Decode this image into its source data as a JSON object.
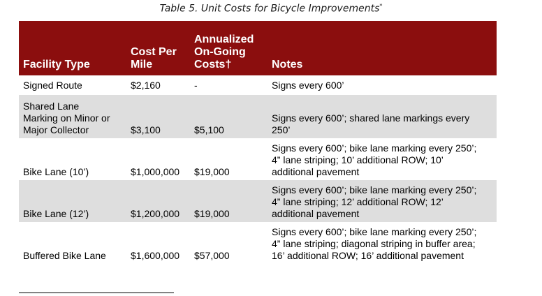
{
  "caption": {
    "title": "Table 5. Unit Costs for Bicycle Improvements",
    "marker": "*"
  },
  "columns": {
    "facility": "Facility Type",
    "cost_l1": "Cost Per",
    "cost_l2": "Mile",
    "annual_l1": "Annualized",
    "annual_l2": "On-Going",
    "annual_l3": "Costs†",
    "notes": "Notes"
  },
  "rows": [
    {
      "facility": [
        "Signed Route"
      ],
      "cost": "$2,160",
      "annual": "-",
      "notes": [
        "Signs every 600’"
      ]
    },
    {
      "facility": [
        "Shared Lane",
        "Marking on Minor or",
        "Major Collector"
      ],
      "cost": "$3,100",
      "annual": "$5,100",
      "notes": [
        "Signs every 600’; shared lane markings every",
        "250’"
      ]
    },
    {
      "facility": [
        "Bike Lane (10’)"
      ],
      "cost": "$1,000,000",
      "annual": "$19,000",
      "notes": [
        "Signs every 600’; bike lane marking every 250’;",
        "4” lane striping; 10’ additional ROW; 10’",
        "additional pavement"
      ]
    },
    {
      "facility": [
        "Bike Lane (12’)"
      ],
      "cost": "$1,200,000",
      "annual": "$19,000",
      "notes": [
        "Signs every 600’; bike lane marking every 250’;",
        "4” lane striping; 12’ additional ROW; 12’",
        "additional pavement"
      ]
    },
    {
      "facility": [
        "Buffered Bike Lane"
      ],
      "cost": "$1,600,000",
      "annual": "$57,000",
      "notes": [
        "Signs every 600’; bike lane marking every 250’;",
        "4” lane striping; diagonal striping in buffer area;",
        "16’ additional ROW; 16’ additional pavement"
      ]
    }
  ]
}
